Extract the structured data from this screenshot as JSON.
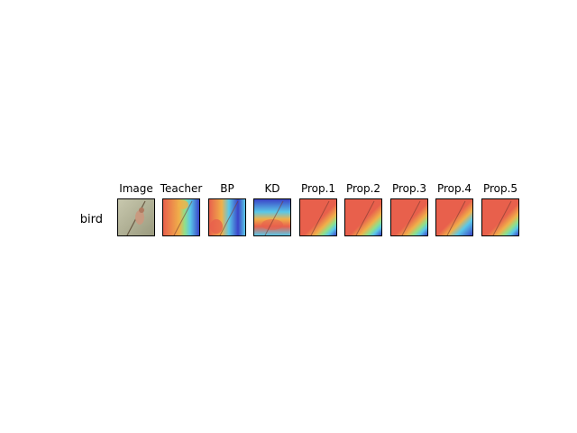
{
  "row_label": "bird",
  "columns": [
    {
      "title": "Image",
      "kind": "photo"
    },
    {
      "title": "Teacher",
      "kind": "heat-a"
    },
    {
      "title": "BP",
      "kind": "heat-b"
    },
    {
      "title": "KD",
      "kind": "heat-c"
    },
    {
      "title": "Prop.1",
      "kind": "heat-d"
    },
    {
      "title": "Prop.2",
      "kind": "heat-d"
    },
    {
      "title": "Prop.3",
      "kind": "heat-d"
    },
    {
      "title": "Prop.4",
      "kind": "heat-e"
    },
    {
      "title": "Prop.5",
      "kind": "heat-d"
    }
  ],
  "colors": {
    "hot": "#e8604c",
    "warm": "#f0b04a",
    "mid": "#8fe08a",
    "cool": "#5ac8e8",
    "cold": "#3a44c8",
    "photo_bg": "#b8b89a"
  }
}
